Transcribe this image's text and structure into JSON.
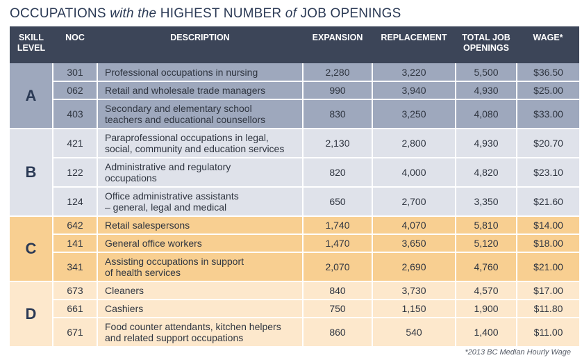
{
  "title": {
    "part1": "OCCUPATIONS ",
    "part2": "with the",
    "part3": " HIGHEST NUMBER ",
    "part4": "of",
    "part5": " JOB OPENINGS"
  },
  "headers": {
    "skill_level_1": "SKILL",
    "skill_level_2": "LEVEL",
    "noc": "NOC",
    "description": "DESCRIPTION",
    "expansion": "EXPANSION",
    "replacement": "REPLACEMENT",
    "total_1": "TOTAL JOB",
    "total_2": "OPENINGS",
    "wage": "WAGE*"
  },
  "groups": [
    {
      "level": "A",
      "color": "#9ea8bd",
      "rows": [
        {
          "noc": "301",
          "desc1": "Professional occupations in nursing",
          "desc2": "",
          "expansion": "2,280",
          "replacement": "3,220",
          "total": "5,500",
          "wage": "$36.50"
        },
        {
          "noc": "062",
          "desc1": "Retail and wholesale trade managers",
          "desc2": "",
          "expansion": "990",
          "replacement": "3,940",
          "total": "4,930",
          "wage": "$25.00"
        },
        {
          "noc": "403",
          "desc1": "Secondary and elementary school",
          "desc2": "teachers and educational counsellors",
          "expansion": "830",
          "replacement": "3,250",
          "total": "4,080",
          "wage": "$33.00"
        }
      ]
    },
    {
      "level": "B",
      "color": "#dfe2ea",
      "rows": [
        {
          "noc": "421",
          "desc1": "Paraprofessional occupations in legal,",
          "desc2": "social, community and education services",
          "expansion": "2,130",
          "replacement": "2,800",
          "total": "4,930",
          "wage": "$20.70"
        },
        {
          "noc": "122",
          "desc1": "Administrative and regulatory",
          "desc2": "occupations",
          "expansion": "820",
          "replacement": "4,000",
          "total": "4,820",
          "wage": "$23.10"
        },
        {
          "noc": "124",
          "desc1": "Office administrative assistants",
          "desc2": "– general, legal and medical",
          "expansion": "650",
          "replacement": "2,700",
          "total": "3,350",
          "wage": "$21.60"
        }
      ]
    },
    {
      "level": "C",
      "color": "#f8cf91",
      "rows": [
        {
          "noc": "642",
          "desc1": "Retail salespersons",
          "desc2": "",
          "expansion": "1,740",
          "replacement": "4,070",
          "total": "5,810",
          "wage": "$14.00"
        },
        {
          "noc": "141",
          "desc1": "General office workers",
          "desc2": "",
          "expansion": "1,470",
          "replacement": "3,650",
          "total": "5,120",
          "wage": "$18.00"
        },
        {
          "noc": "341",
          "desc1": "Assisting occupations in support",
          "desc2": "of health services",
          "expansion": "2,070",
          "replacement": "2,690",
          "total": "4,760",
          "wage": "$21.00"
        }
      ]
    },
    {
      "level": "D",
      "color": "#fde8cc",
      "rows": [
        {
          "noc": "673",
          "desc1": "Cleaners",
          "desc2": "",
          "expansion": "840",
          "replacement": "3,730",
          "total": "4,570",
          "wage": "$17.00"
        },
        {
          "noc": "661",
          "desc1": "Cashiers",
          "desc2": "",
          "expansion": "750",
          "replacement": "1,150",
          "total": "1,900",
          "wage": "$11.80"
        },
        {
          "noc": "671",
          "desc1": "Food counter attendants, kitchen helpers",
          "desc2": "and related support occupations",
          "expansion": "860",
          "replacement": "540",
          "total": "1,400",
          "wage": "$11.00"
        }
      ]
    }
  ],
  "footnote": "*2013 BC Median Hourly Wage"
}
